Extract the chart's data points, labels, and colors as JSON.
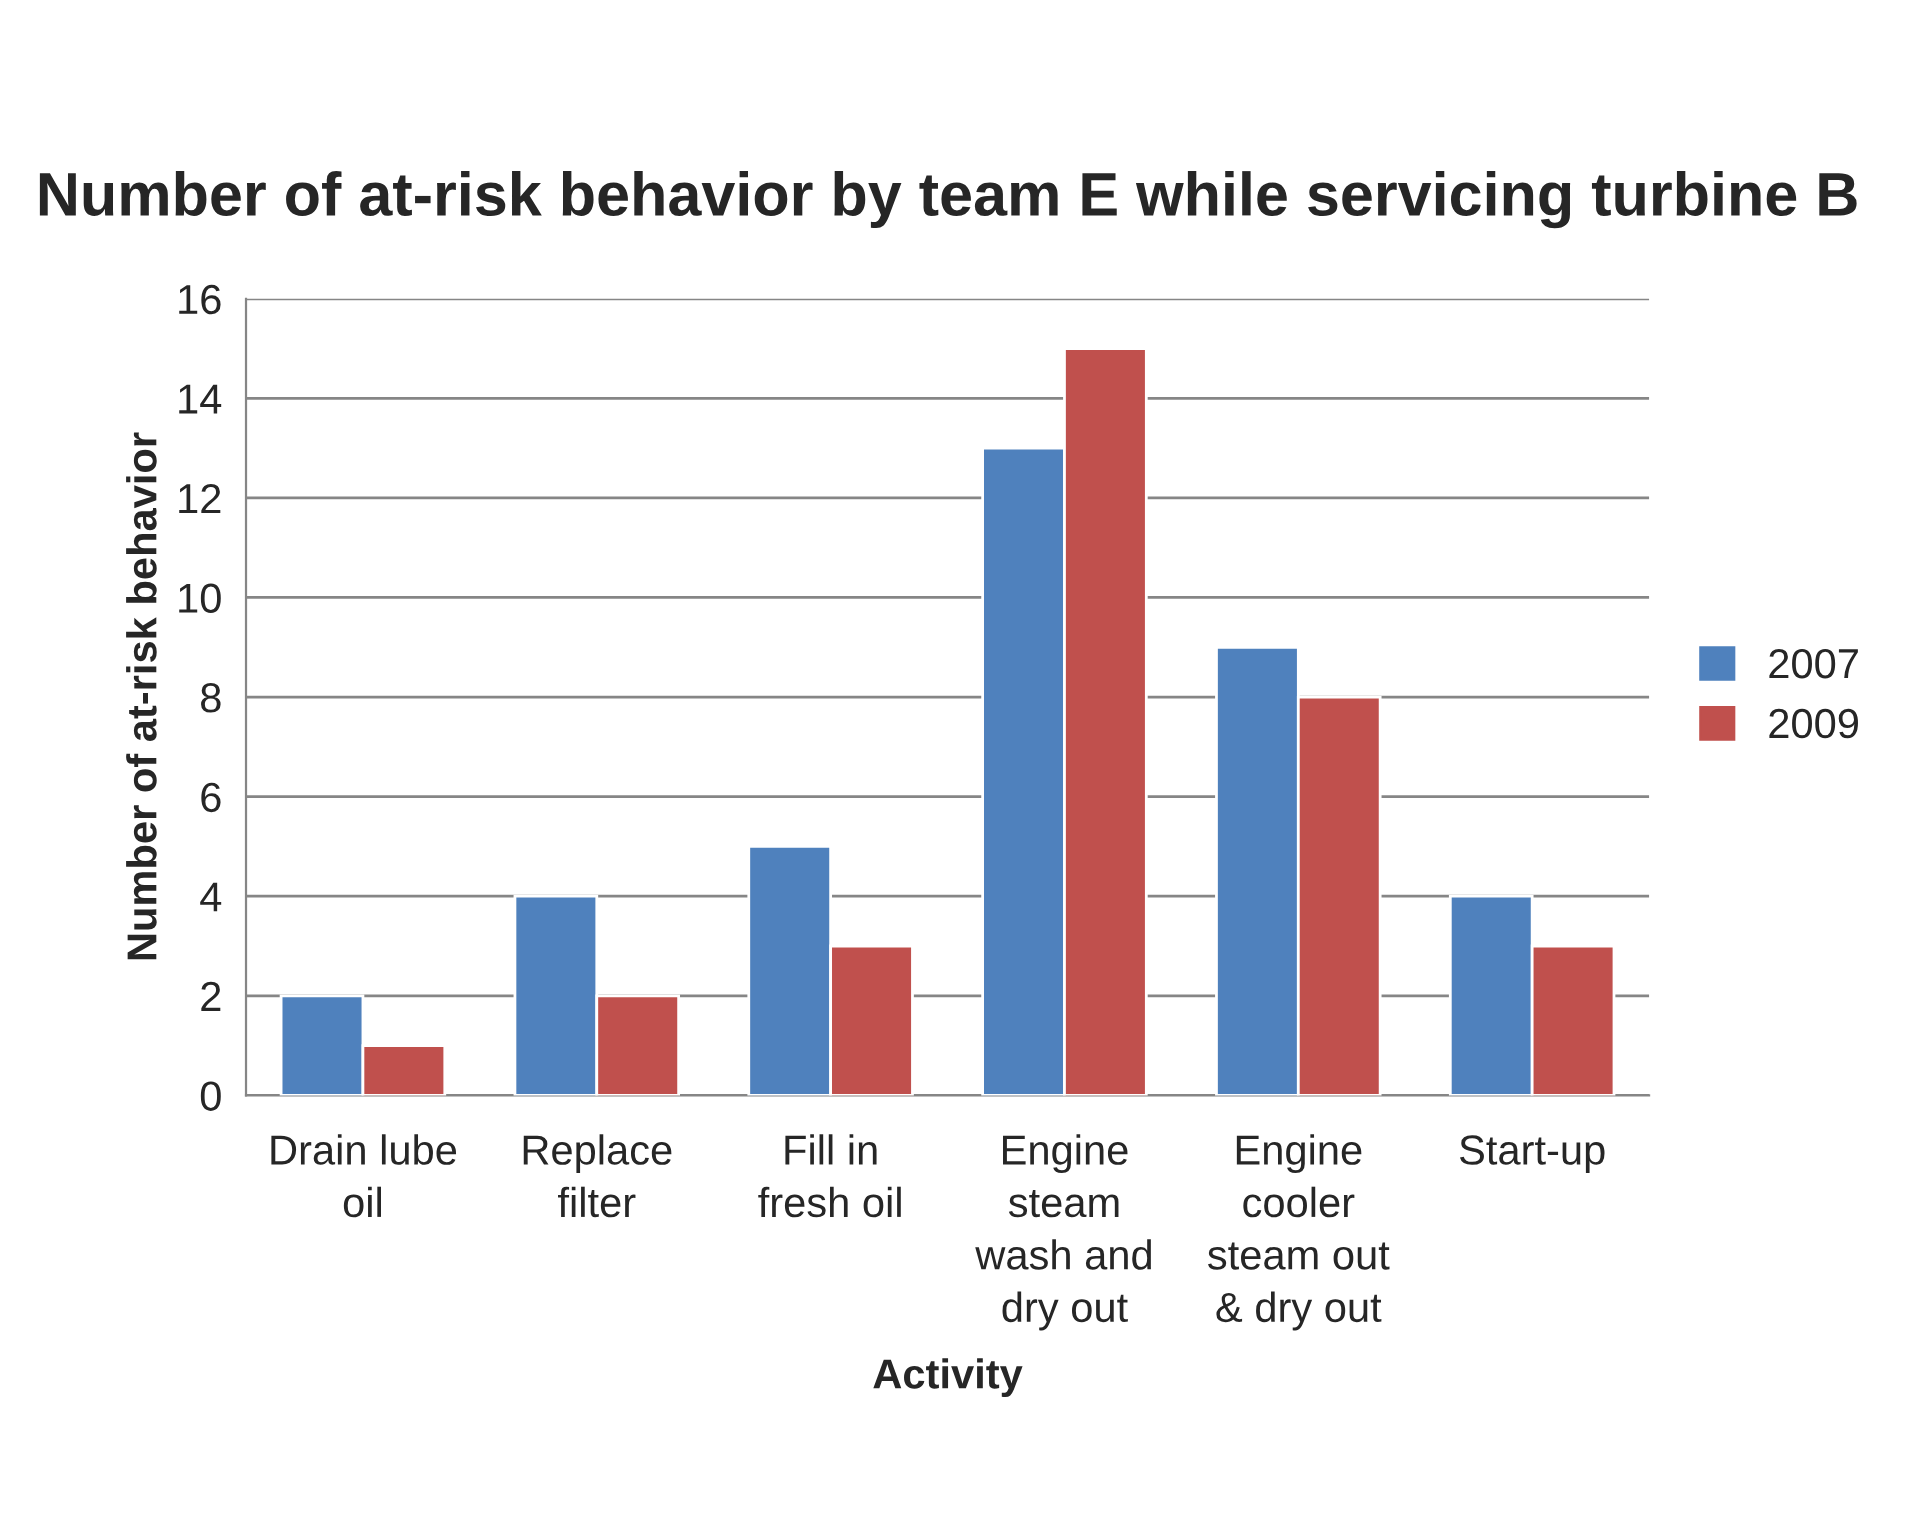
{
  "chart_data": {
    "type": "bar",
    "title": "Number of at-risk behavior by team E while servicing turbine B",
    "xlabel": "Activity",
    "ylabel": "Number of at-risk behavior",
    "categories": [
      "Drain lube\noil",
      "Replace\nfilter",
      "Fill in\nfresh oil",
      "Engine\nsteam\nwash and\ndry out",
      "Engine\ncooler\nsteam out\n& dry out",
      "Start-up"
    ],
    "series": [
      {
        "name": "2007",
        "color": "#4f81bd",
        "values": [
          2,
          4,
          5,
          13,
          9,
          4
        ]
      },
      {
        "name": "2009",
        "color": "#c0504d",
        "values": [
          1,
          2,
          3,
          15,
          8,
          3
        ]
      }
    ],
    "ylim": [
      0,
      16
    ],
    "yticks": [
      0,
      2,
      4,
      6,
      8,
      10,
      12,
      14,
      16
    ],
    "grid": "y",
    "legend": "right"
  }
}
